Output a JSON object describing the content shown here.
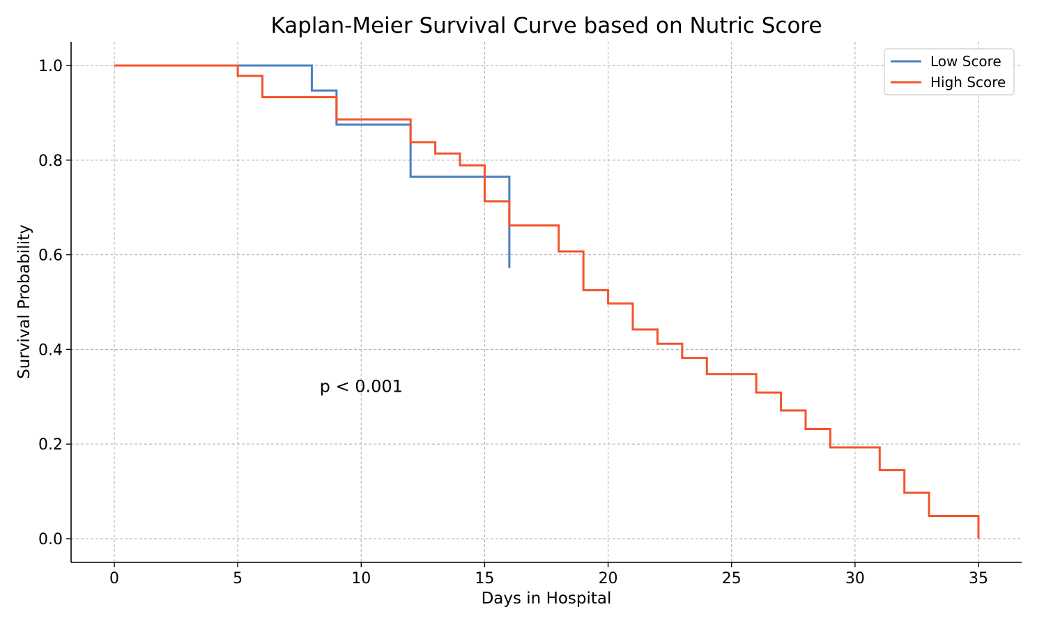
{
  "chart_data": {
    "type": "line",
    "step": "post",
    "title": "Kaplan-Meier Survival Curve based on Nutric Score",
    "xlabel": "Days in Hospital",
    "ylabel": "Survival Probability",
    "xlim": [
      -1.75,
      36.75
    ],
    "ylim": [
      -0.05,
      1.05
    ],
    "xticks": [
      0,
      5,
      10,
      15,
      20,
      25,
      30,
      35
    ],
    "yticks": [
      0.0,
      0.2,
      0.4,
      0.6,
      0.8,
      1.0
    ],
    "ytick_labels": [
      "0.0",
      "0.2",
      "0.4",
      "0.6",
      "0.8",
      "1.0"
    ],
    "grid": true,
    "legend_position": "top-right",
    "annotation": "p < 0.001",
    "annotation_at": [
      10,
      0.31
    ],
    "series": [
      {
        "name": "Low Score",
        "color": "#4a7fbf",
        "x": [
          0,
          8,
          9,
          12,
          16,
          16
        ],
        "y": [
          1.0,
          0.947,
          0.875,
          0.765,
          0.765,
          0.572
        ]
      },
      {
        "name": "High Score",
        "color": "#f4542a",
        "x": [
          0,
          5,
          6,
          9,
          12,
          13,
          14,
          15,
          16,
          18,
          19,
          20,
          21,
          22,
          23,
          24,
          26,
          27,
          28,
          29,
          31,
          32,
          33,
          35,
          35
        ],
        "y": [
          1.0,
          0.978,
          0.933,
          0.886,
          0.838,
          0.814,
          0.789,
          0.713,
          0.662,
          0.607,
          0.525,
          0.497,
          0.442,
          0.412,
          0.382,
          0.348,
          0.309,
          0.271,
          0.232,
          0.193,
          0.145,
          0.097,
          0.048,
          0.048,
          0.0
        ]
      }
    ]
  }
}
